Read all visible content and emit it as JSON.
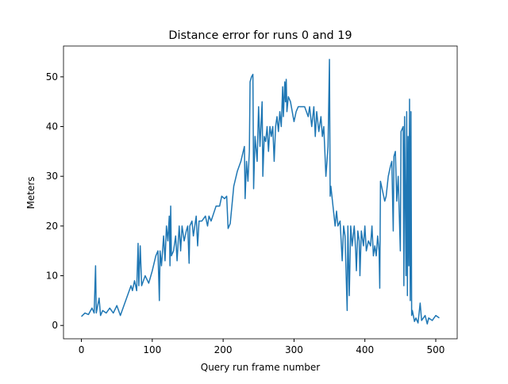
{
  "chart_data": {
    "type": "line",
    "title": "Distance error for runs 0 and 19",
    "x_label": "Query run frame number",
    "y_label": "Meters",
    "xlim": [
      -25.25,
      530.25
    ],
    "ylim": [
      -2.68,
      56.2
    ],
    "xticks": [
      0,
      100,
      200,
      300,
      400,
      500
    ],
    "yticks": [
      0,
      10,
      20,
      30,
      40,
      50
    ],
    "x": [
      0,
      5,
      10,
      15,
      18,
      20,
      21,
      25,
      27,
      30,
      35,
      40,
      45,
      50,
      55,
      60,
      65,
      70,
      72,
      75,
      78,
      80,
      81,
      83,
      85,
      90,
      95,
      100,
      105,
      108,
      110,
      111,
      113,
      116,
      118,
      120,
      122,
      124,
      125,
      126,
      127,
      130,
      133,
      135,
      138,
      140,
      142,
      145,
      148,
      150,
      152,
      153,
      156,
      158,
      162,
      164,
      166,
      170,
      175,
      178,
      180,
      183,
      190,
      195,
      198,
      202,
      205,
      207,
      210,
      215,
      220,
      225,
      230,
      231,
      233,
      235,
      237,
      238,
      240,
      242,
      243,
      245,
      248,
      250,
      252,
      255,
      256,
      258,
      260,
      262,
      264,
      266,
      268,
      270,
      272,
      274,
      276,
      278,
      280,
      282,
      284,
      285,
      287,
      288,
      289,
      290,
      292,
      295,
      300,
      303,
      306,
      310,
      315,
      320,
      322,
      325,
      328,
      330,
      332,
      335,
      338,
      340,
      342,
      345,
      348,
      350,
      351,
      352,
      355,
      358,
      360,
      362,
      365,
      368,
      370,
      372,
      375,
      376,
      378,
      380,
      382,
      385,
      387,
      388,
      390,
      392,
      393,
      395,
      398,
      400,
      402,
      405,
      408,
      410,
      412,
      414,
      416,
      418,
      420,
      421,
      422,
      425,
      428,
      430,
      433,
      436,
      438,
      440,
      441,
      443,
      445,
      447,
      450,
      451,
      454,
      455,
      456,
      458,
      459,
      460,
      461,
      462,
      463,
      464,
      465,
      466,
      467,
      470,
      472,
      475,
      478,
      480,
      485,
      488,
      490,
      495,
      500,
      505
    ],
    "series": [
      {
        "color": "#1f77b4",
        "values": [
          1.8,
          2.5,
          2.2,
          3.5,
          2.5,
          12,
          2.5,
          5.5,
          2,
          3,
          2.5,
          3.5,
          2.5,
          4,
          2,
          4,
          6,
          8,
          7,
          9,
          7,
          16.5,
          8,
          16,
          8,
          10,
          8.5,
          11,
          14,
          15,
          5,
          15,
          12,
          18,
          13,
          20,
          17,
          22,
          12,
          24,
          14,
          15,
          18,
          13,
          20,
          15,
          20,
          17,
          19,
          20,
          12.5,
          20,
          21,
          18,
          22,
          16,
          21,
          21,
          22,
          20,
          22,
          21,
          24,
          24,
          26,
          25.5,
          26,
          19.5,
          20.5,
          28,
          31,
          33,
          36,
          25.5,
          33,
          29,
          35,
          49,
          50,
          50.5,
          27.5,
          38,
          33,
          44,
          36,
          45,
          30,
          38,
          37,
          40,
          35,
          40,
          38,
          40,
          33,
          40,
          42,
          39,
          43,
          40,
          48,
          42,
          49,
          45,
          49.5,
          43,
          46,
          45,
          41,
          43,
          44,
          44,
          44,
          42,
          44,
          40,
          44,
          38,
          43,
          39,
          42,
          38,
          40,
          30,
          36,
          53.5,
          26,
          28,
          24,
          20,
          23,
          20,
          21,
          13,
          20,
          18,
          3,
          20,
          6,
          20,
          16,
          20,
          15,
          11,
          19,
          17,
          10,
          19,
          16,
          20,
          15,
          17,
          16,
          20,
          14,
          16,
          14,
          18,
          15,
          7.5,
          29,
          27,
          25,
          26,
          30,
          32,
          33,
          19,
          34,
          35,
          25,
          30,
          15,
          39,
          40,
          8,
          42,
          10,
          43,
          6,
          38,
          12,
          45.5,
          5,
          43,
          2,
          3,
          0.8,
          1.5,
          0.5,
          4.5,
          1,
          2,
          0.3,
          1.5,
          1,
          2,
          1.5
        ]
      }
    ]
  }
}
